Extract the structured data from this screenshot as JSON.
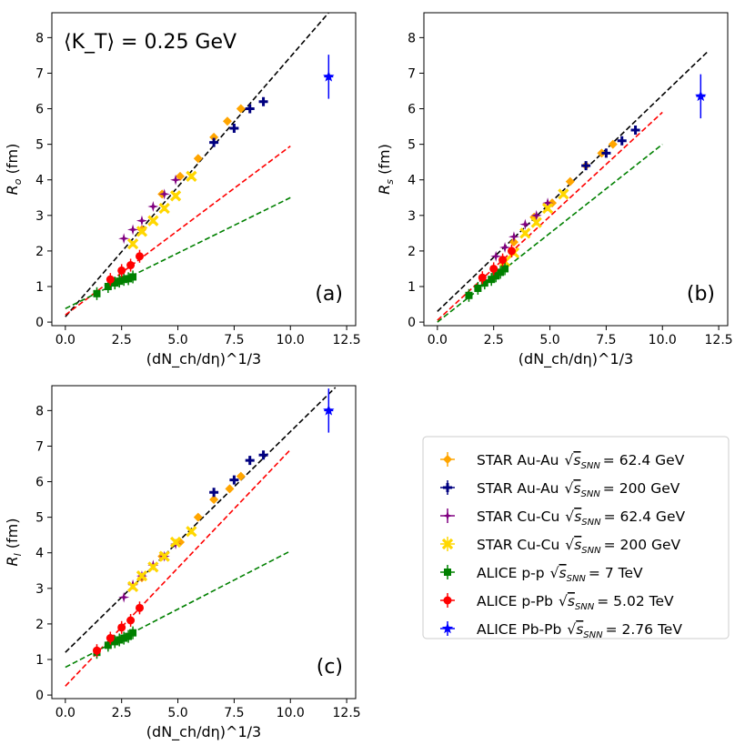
{
  "chart_data": {
    "type": "scatter",
    "annotation": "⟨K_T⟩ = 0.25 GeV",
    "x_label": "(dN_ch/dη)^1/3",
    "x_ticks": [
      "0.0",
      "2.5",
      "5.0",
      "7.5",
      "10.0",
      "12.5"
    ],
    "y_ticks": [
      "0",
      "1",
      "2",
      "3",
      "4",
      "5",
      "6",
      "7",
      "8"
    ],
    "xlim": [
      -0.6,
      12.9
    ],
    "legend_position": "bottom-right",
    "series_meta": [
      {
        "key": "star_auau_62",
        "color": "#FFA500",
        "marker": "diamond",
        "exp": "STAR Au-Au",
        "energy": "= 62.4 GeV"
      },
      {
        "key": "star_auau_200",
        "color": "#000080",
        "marker": "plus",
        "exp": "STAR Au-Au",
        "energy": "= 200 GeV"
      },
      {
        "key": "star_cucu_62",
        "color": "#800080",
        "marker": "star4",
        "exp": "STAR Cu-Cu",
        "energy": "= 62.4 GeV"
      },
      {
        "key": "star_cucu_200",
        "color": "#FFD700",
        "marker": "x",
        "exp": "STAR Cu-Cu",
        "energy": "= 200 GeV"
      },
      {
        "key": "alice_pp",
        "color": "#008000",
        "marker": "square",
        "exp": "ALICE p-p",
        "energy": "= 7 TeV"
      },
      {
        "key": "alice_ppb",
        "color": "#FF0000",
        "marker": "circle",
        "exp": "ALICE p-Pb",
        "energy": "= 5.02 TeV"
      },
      {
        "key": "alice_pbpb",
        "color": "#0000FF",
        "marker": "star",
        "exp": "ALICE Pb-Pb",
        "energy": "= 2.76 TeV"
      }
    ],
    "panels": [
      {
        "label": "(a)",
        "ylabel_main": "R",
        "ylabel_sub": "o",
        "ylabel_unit": " (fm)",
        "ylim": [
          -0.1,
          8.7
        ],
        "series": {
          "star_auau_62": [
            [
              3.4,
              2.6
            ],
            [
              4.3,
              3.6
            ],
            [
              5.1,
              4.1
            ],
            [
              5.9,
              4.6
            ],
            [
              6.6,
              5.2
            ],
            [
              7.2,
              5.65
            ],
            [
              7.8,
              6.0
            ]
          ],
          "star_auau_200": [
            [
              6.6,
              5.05
            ],
            [
              7.5,
              5.45
            ],
            [
              8.2,
              6.0
            ],
            [
              8.8,
              6.2
            ]
          ],
          "star_cucu_62": [
            [
              2.6,
              2.35
            ],
            [
              3.0,
              2.6
            ],
            [
              3.4,
              2.85
            ],
            [
              3.9,
              3.25
            ],
            [
              4.4,
              3.6
            ],
            [
              4.9,
              4.0
            ]
          ],
          "star_cucu_200": [
            [
              3.0,
              2.2
            ],
            [
              3.4,
              2.55
            ],
            [
              3.9,
              2.85
            ],
            [
              4.4,
              3.2
            ],
            [
              4.9,
              3.55
            ],
            [
              5.6,
              4.1
            ]
          ],
          "alice_pp": [
            [
              1.4,
              0.8
            ],
            [
              1.9,
              1.0
            ],
            [
              2.2,
              1.1
            ],
            [
              2.4,
              1.15
            ],
            [
              2.6,
              1.2
            ],
            [
              2.8,
              1.22
            ],
            [
              3.0,
              1.27
            ]
          ],
          "alice_ppb": [
            [
              2.0,
              1.2
            ],
            [
              2.5,
              1.45
            ],
            [
              2.9,
              1.6
            ],
            [
              3.3,
              1.85
            ]
          ],
          "alice_pbpb": [
            [
              11.7,
              6.9
            ]
          ]
        },
        "fits": [
          {
            "color": "#000000",
            "x": [
              0.0,
              11.7
            ],
            "y": [
              0.15,
              8.7
            ]
          },
          {
            "color": "#FF0000",
            "x": [
              0.0,
              10.0
            ],
            "y": [
              0.2,
              4.95
            ]
          },
          {
            "color": "#008000",
            "x": [
              0.0,
              10.0
            ],
            "y": [
              0.38,
              3.5
            ]
          }
        ]
      },
      {
        "label": "(b)",
        "ylabel_main": "R",
        "ylabel_sub": "s",
        "ylabel_unit": " (fm)",
        "ylim": [
          -0.1,
          8.7
        ],
        "series": {
          "star_auau_62": [
            [
              3.4,
              2.25
            ],
            [
              4.3,
              2.95
            ],
            [
              5.1,
              3.35
            ],
            [
              5.9,
              3.95
            ],
            [
              6.6,
              4.4
            ],
            [
              7.3,
              4.75
            ],
            [
              7.8,
              5.0
            ]
          ],
          "star_auau_200": [
            [
              6.6,
              4.4
            ],
            [
              7.5,
              4.75
            ],
            [
              8.2,
              5.1
            ],
            [
              8.8,
              5.4
            ]
          ],
          "star_cucu_62": [
            [
              2.6,
              1.85
            ],
            [
              3.0,
              2.1
            ],
            [
              3.4,
              2.4
            ],
            [
              3.9,
              2.75
            ],
            [
              4.4,
              3.0
            ],
            [
              4.9,
              3.35
            ]
          ],
          "star_cucu_200": [
            [
              3.0,
              1.7
            ],
            [
              3.4,
              1.95
            ],
            [
              3.9,
              2.5
            ],
            [
              4.4,
              2.8
            ],
            [
              4.9,
              3.2
            ],
            [
              5.6,
              3.6
            ]
          ],
          "alice_pp": [
            [
              1.4,
              0.75
            ],
            [
              1.8,
              0.95
            ],
            [
              2.1,
              1.1
            ],
            [
              2.4,
              1.2
            ],
            [
              2.6,
              1.3
            ],
            [
              2.8,
              1.4
            ],
            [
              3.0,
              1.5
            ]
          ],
          "alice_ppb": [
            [
              2.0,
              1.25
            ],
            [
              2.5,
              1.5
            ],
            [
              2.9,
              1.75
            ],
            [
              3.3,
              2.0
            ]
          ],
          "alice_pbpb": [
            [
              11.7,
              6.35
            ]
          ]
        },
        "fits": [
          {
            "color": "#000000",
            "x": [
              0.0,
              12.0
            ],
            "y": [
              0.3,
              7.6
            ]
          },
          {
            "color": "#FF0000",
            "x": [
              0.0,
              10.0
            ],
            "y": [
              0.05,
              5.9
            ]
          },
          {
            "color": "#008000",
            "x": [
              0.0,
              10.0
            ],
            "y": [
              0.0,
              5.0
            ]
          }
        ]
      },
      {
        "label": "(c)",
        "ylabel_main": "R",
        "ylabel_sub": "l",
        "ylabel_unit": " (fm)",
        "ylim": [
          -0.1,
          8.7
        ],
        "series": {
          "star_auau_62": [
            [
              3.4,
              3.3
            ],
            [
              4.3,
              3.9
            ],
            [
              5.1,
              4.3
            ],
            [
              5.9,
              5.0
            ],
            [
              6.6,
              5.5
            ],
            [
              7.3,
              5.8
            ],
            [
              7.8,
              6.15
            ]
          ],
          "star_auau_200": [
            [
              6.6,
              5.7
            ],
            [
              7.5,
              6.05
            ],
            [
              8.2,
              6.6
            ],
            [
              8.8,
              6.75
            ]
          ],
          "star_cucu_62": [
            [
              2.6,
              2.75
            ],
            [
              3.0,
              3.1
            ],
            [
              3.4,
              3.35
            ],
            [
              3.9,
              3.65
            ],
            [
              4.4,
              3.9
            ],
            [
              4.9,
              4.25
            ]
          ],
          "star_cucu_200": [
            [
              3.0,
              3.05
            ],
            [
              3.4,
              3.35
            ],
            [
              3.9,
              3.6
            ],
            [
              4.4,
              3.9
            ],
            [
              4.9,
              4.3
            ],
            [
              5.6,
              4.6
            ]
          ],
          "alice_pp": [
            [
              1.4,
              1.2
            ],
            [
              1.9,
              1.4
            ],
            [
              2.2,
              1.5
            ],
            [
              2.4,
              1.55
            ],
            [
              2.6,
              1.6
            ],
            [
              2.8,
              1.65
            ],
            [
              3.0,
              1.75
            ]
          ],
          "alice_ppb": [
            [
              1.4,
              1.25
            ],
            [
              2.0,
              1.6
            ],
            [
              2.5,
              1.9
            ],
            [
              2.9,
              2.1
            ],
            [
              3.3,
              2.45
            ]
          ],
          "alice_pbpb": [
            [
              11.7,
              8.0
            ]
          ]
        },
        "fits": [
          {
            "color": "#000000",
            "x": [
              0.0,
              12.0
            ],
            "y": [
              1.2,
              8.65
            ]
          },
          {
            "color": "#FF0000",
            "x": [
              0.0,
              10.0
            ],
            "y": [
              0.25,
              6.9
            ]
          },
          {
            "color": "#008000",
            "x": [
              0.0,
              10.0
            ],
            "y": [
              0.78,
              4.05
            ]
          }
        ]
      }
    ]
  }
}
